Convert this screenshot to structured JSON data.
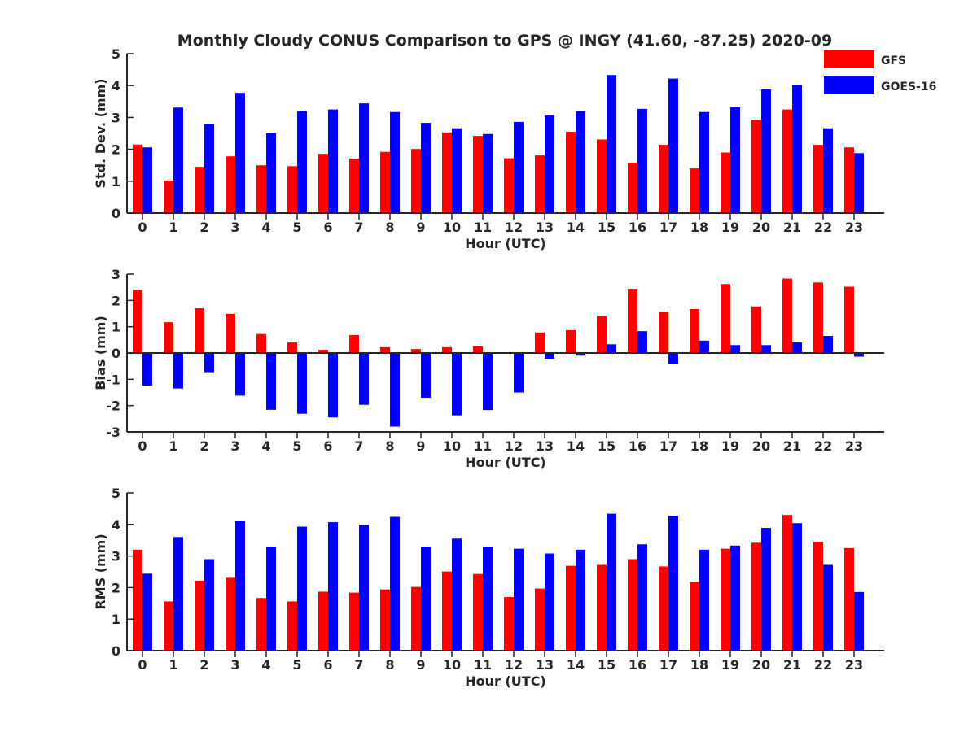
{
  "title": "Monthly Cloudy CONUS Comparison to GPS @ INGY (41.60, -87.25) 2020-09",
  "colors": {
    "GFS": "#ff0000",
    "GOES-16": "#0000ff",
    "axis": "#262626"
  },
  "legend": [
    {
      "label": "GFS",
      "color": "#ff0000"
    },
    {
      "label": "GOES-16",
      "color": "#0000ff"
    }
  ],
  "chart_data": [
    {
      "type": "bar",
      "id": "std",
      "title": "Monthly Cloudy CONUS Comparison to GPS @ INGY (41.60, -87.25) 2020-09",
      "xlabel": "Hour (UTC)",
      "ylabel": "Std. Dev. (mm)",
      "ylim": [
        0,
        5
      ],
      "yticks": [
        0,
        1,
        2,
        3,
        4,
        5
      ],
      "categories": [
        "0",
        "1",
        "2",
        "3",
        "4",
        "5",
        "6",
        "7",
        "8",
        "9",
        "10",
        "11",
        "12",
        "13",
        "14",
        "15",
        "16",
        "17",
        "18",
        "19",
        "20",
        "21",
        "22",
        "23"
      ],
      "series": [
        {
          "name": "GFS",
          "values": [
            2.15,
            1.02,
            1.45,
            1.78,
            1.5,
            1.47,
            1.86,
            1.71,
            1.92,
            2.01,
            2.53,
            2.42,
            1.72,
            1.81,
            2.55,
            2.31,
            1.58,
            2.14,
            1.4,
            1.9,
            2.93,
            3.25,
            2.14,
            2.06
          ]
        },
        {
          "name": "GOES-16",
          "values": [
            2.06,
            3.31,
            2.8,
            3.77,
            2.5,
            3.2,
            3.25,
            3.44,
            3.17,
            2.83,
            2.66,
            2.48,
            2.86,
            3.06,
            3.2,
            4.33,
            3.27,
            4.22,
            3.17,
            3.32,
            3.88,
            4.02,
            2.66,
            1.88
          ]
        }
      ]
    },
    {
      "type": "bar",
      "id": "bias",
      "xlabel": "Hour (UTC)",
      "ylabel": "Bias (mm)",
      "ylim": [
        -3,
        3
      ],
      "yticks": [
        -3,
        -2,
        -1,
        0,
        1,
        2,
        3
      ],
      "categories": [
        "0",
        "1",
        "2",
        "3",
        "4",
        "5",
        "6",
        "7",
        "8",
        "9",
        "10",
        "11",
        "12",
        "13",
        "14",
        "15",
        "16",
        "17",
        "18",
        "19",
        "20",
        "21",
        "22",
        "23"
      ],
      "series": [
        {
          "name": "GFS",
          "values": [
            2.4,
            1.17,
            1.7,
            1.49,
            0.72,
            0.4,
            0.12,
            0.68,
            0.22,
            0.15,
            0.22,
            0.25,
            0.0,
            0.78,
            0.87,
            1.4,
            2.44,
            1.57,
            1.67,
            2.62,
            1.77,
            2.83,
            2.68,
            2.52
          ]
        },
        {
          "name": "GOES-16",
          "values": [
            -1.24,
            -1.35,
            -0.73,
            -1.62,
            -2.16,
            -2.31,
            -2.45,
            -1.97,
            -2.8,
            -1.7,
            -2.37,
            -2.17,
            -1.5,
            -0.22,
            -0.1,
            0.33,
            0.83,
            -0.43,
            0.47,
            0.3,
            0.3,
            0.4,
            0.65,
            -0.14
          ]
        }
      ]
    },
    {
      "type": "bar",
      "id": "rms",
      "xlabel": "Hour (UTC)",
      "ylabel": "RMS (mm)",
      "ylim": [
        0,
        5
      ],
      "yticks": [
        0,
        1,
        2,
        3,
        4,
        5
      ],
      "categories": [
        "0",
        "1",
        "2",
        "3",
        "4",
        "5",
        "6",
        "7",
        "8",
        "9",
        "10",
        "11",
        "12",
        "13",
        "14",
        "15",
        "16",
        "17",
        "18",
        "19",
        "20",
        "21",
        "22",
        "23"
      ],
      "series": [
        {
          "name": "GFS",
          "values": [
            3.2,
            1.56,
            2.22,
            2.31,
            1.67,
            1.56,
            1.87,
            1.84,
            1.94,
            2.02,
            2.51,
            2.43,
            1.7,
            1.97,
            2.69,
            2.72,
            2.9,
            2.67,
            2.18,
            3.23,
            3.42,
            4.3,
            3.45,
            3.25
          ]
        },
        {
          "name": "GOES-16",
          "values": [
            2.44,
            3.6,
            2.9,
            4.12,
            3.3,
            3.93,
            4.07,
            3.99,
            4.24,
            3.3,
            3.55,
            3.3,
            3.23,
            3.08,
            3.2,
            4.34,
            3.37,
            4.27,
            3.2,
            3.33,
            3.89,
            4.04,
            2.72,
            1.86
          ]
        }
      ]
    }
  ]
}
